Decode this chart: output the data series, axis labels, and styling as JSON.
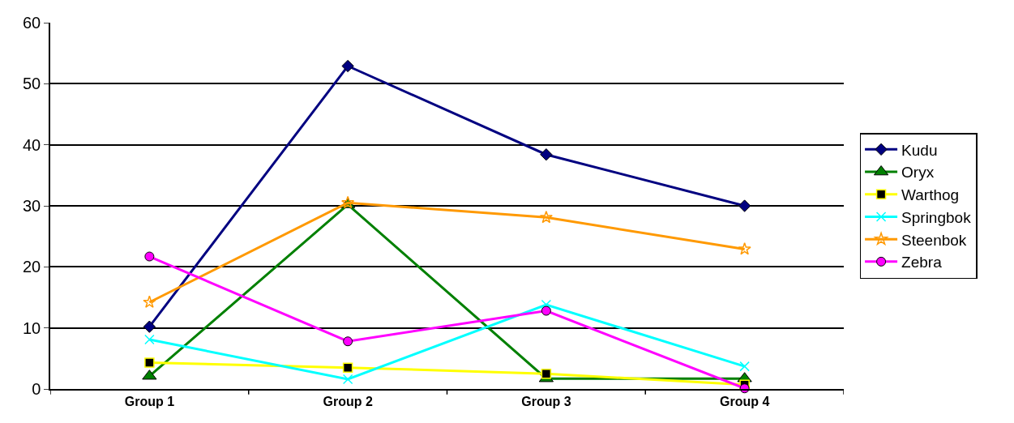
{
  "chart_data": {
    "type": "line",
    "categories": [
      "Group 1",
      "Group 2",
      "Group 3",
      "Group 4"
    ],
    "series": [
      {
        "name": "Kudu",
        "color": "#000080",
        "marker": "diamond",
        "values": [
          10.2,
          52.9,
          38.4,
          30.0
        ]
      },
      {
        "name": "Oryx",
        "color": "#008000",
        "marker": "triangle",
        "values": [
          2.1,
          30.2,
          1.7,
          1.7
        ]
      },
      {
        "name": "Warthog",
        "color": "#ffff00",
        "marker": "square",
        "values": [
          4.3,
          3.5,
          2.5,
          0.7
        ]
      },
      {
        "name": "Springbok",
        "color": "#00ffff",
        "marker": "cross",
        "values": [
          8.1,
          1.6,
          13.8,
          3.7
        ]
      },
      {
        "name": "Steenbok",
        "color": "#ff9900",
        "marker": "star",
        "values": [
          14.2,
          30.5,
          28.1,
          22.9
        ]
      },
      {
        "name": "Zebra",
        "color": "#ff00ff",
        "marker": "circle",
        "values": [
          21.7,
          7.8,
          12.8,
          0.1
        ]
      }
    ],
    "ylim": [
      0,
      60
    ],
    "yticks": [
      0,
      10,
      20,
      30,
      40,
      50,
      60
    ],
    "grid": "y",
    "legend": "right",
    "line_style": "solid"
  }
}
